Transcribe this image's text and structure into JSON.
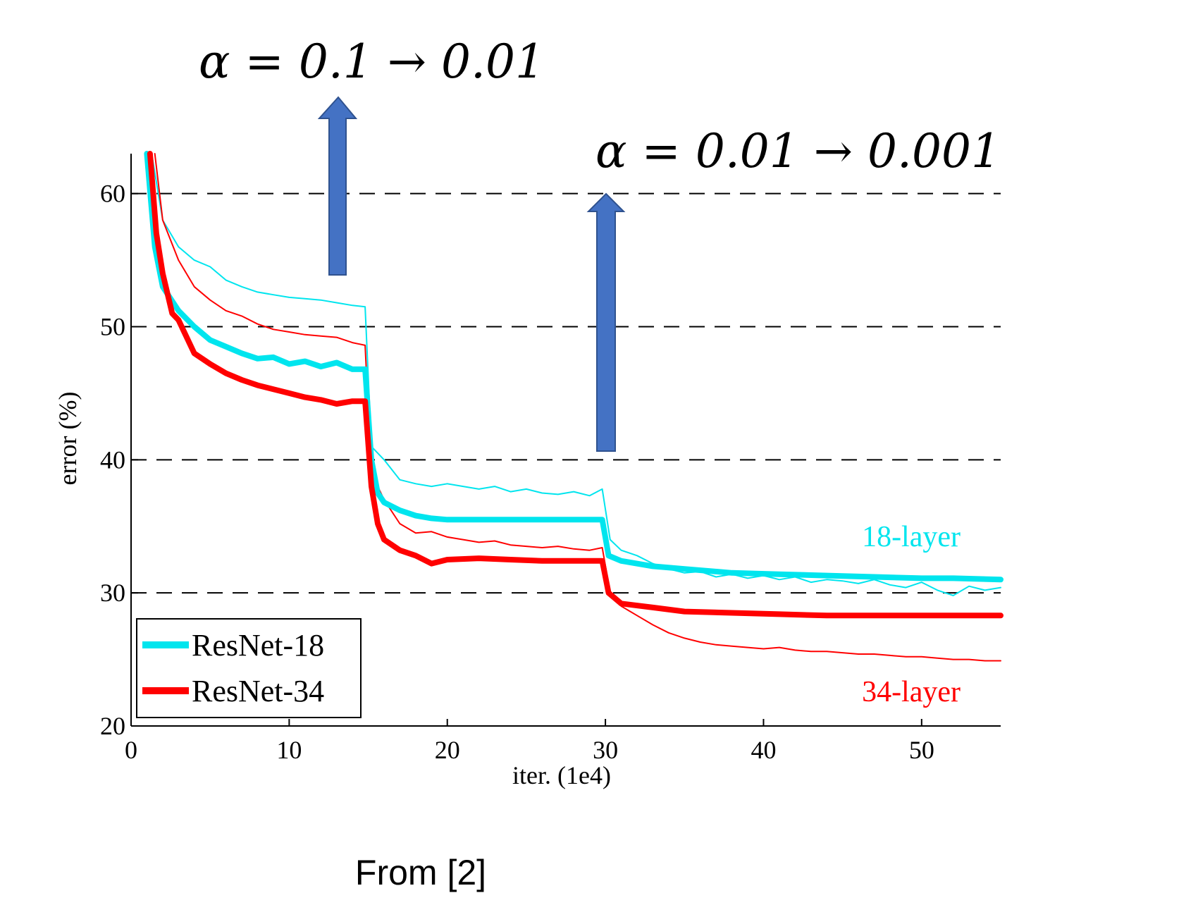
{
  "chart_data": {
    "type": "line",
    "xlabel": "iter. (1e4)",
    "ylabel": "error (%)",
    "xlim": [
      0,
      55
    ],
    "ylim": [
      20,
      63
    ],
    "xticks": [
      0,
      10,
      20,
      30,
      40,
      50
    ],
    "yticks": [
      20,
      30,
      40,
      50,
      60
    ],
    "grid": "horizontal dashed at 30, 40, 50, 60",
    "legend": {
      "placement": "bottom-left",
      "entries": [
        "ResNet-18",
        "ResNet-34"
      ]
    },
    "series": [
      {
        "name": "ResNet-18",
        "kind": "val",
        "color": "#00e5ee",
        "x": [
          1,
          1.5,
          2,
          3,
          4,
          5,
          6,
          7,
          8,
          9,
          10,
          11,
          12,
          13,
          14,
          14.8,
          15.2,
          15.6,
          16,
          17,
          18,
          19,
          20,
          22,
          24,
          26,
          28,
          29.8,
          30.2,
          31,
          33,
          35,
          38,
          41,
          44,
          47,
          50,
          52,
          55
        ],
        "y": [
          63,
          56,
          53,
          51.2,
          50,
          49,
          48.5,
          48,
          47.6,
          47.7,
          47.2,
          47.4,
          47,
          47.3,
          46.8,
          46.8,
          40,
          37.5,
          36.8,
          36.2,
          35.8,
          35.6,
          35.5,
          35.5,
          35.5,
          35.5,
          35.5,
          35.5,
          32.8,
          32.4,
          32,
          31.8,
          31.5,
          31.4,
          31.3,
          31.2,
          31.1,
          31.1,
          31
        ]
      },
      {
        "name": "ResNet-34",
        "kind": "val",
        "color": "#ff0000",
        "x": [
          1.2,
          1.6,
          2,
          2.6,
          3,
          4,
          5,
          6,
          7,
          8,
          9,
          10,
          11,
          12,
          13,
          14,
          14.8,
          15.2,
          15.6,
          16,
          17,
          18,
          19,
          20,
          22,
          24,
          26,
          28,
          29.8,
          30.2,
          31,
          33,
          35,
          38,
          41,
          44,
          47,
          50,
          52,
          55
        ],
        "y": [
          63,
          57,
          54,
          51,
          50.5,
          48,
          47.2,
          46.5,
          46,
          45.6,
          45.3,
          45,
          44.7,
          44.5,
          44.2,
          44.4,
          44.4,
          38,
          35.2,
          34,
          33.2,
          32.8,
          32.2,
          32.5,
          32.6,
          32.5,
          32.4,
          32.4,
          32.4,
          30,
          29.2,
          28.9,
          28.6,
          28.5,
          28.4,
          28.3,
          28.3,
          28.3,
          28.3,
          28.3
        ]
      },
      {
        "name": "ResNet-18",
        "kind": "train",
        "color": "#00e5ee",
        "x": [
          1.3,
          2,
          3,
          4,
          5,
          6,
          7,
          8,
          9,
          10,
          11,
          12,
          13,
          14,
          14.8,
          15.2,
          16,
          17,
          18,
          19,
          20,
          21,
          22,
          23,
          24,
          25,
          26,
          27,
          28,
          29,
          29.8,
          30.3,
          31,
          32,
          33,
          34,
          35,
          36,
          37,
          38,
          39,
          40,
          41,
          42,
          43,
          44,
          45,
          46,
          47,
          48,
          49,
          50,
          51,
          52,
          53,
          54,
          55
        ],
        "y": [
          63,
          58,
          56,
          55,
          54.5,
          53.5,
          53,
          52.6,
          52.4,
          52.2,
          52.1,
          52,
          51.8,
          51.6,
          51.5,
          41,
          40,
          38.5,
          38.2,
          38,
          38.2,
          38,
          37.8,
          38,
          37.6,
          37.8,
          37.5,
          37.4,
          37.6,
          37.3,
          37.8,
          34,
          33.2,
          32.8,
          32.2,
          31.8,
          31.5,
          31.6,
          31.2,
          31.4,
          31.1,
          31.3,
          31,
          31.2,
          30.8,
          31,
          30.9,
          30.7,
          31,
          30.6,
          30.4,
          30.8,
          30.2,
          29.8,
          30.5,
          30.2,
          30.4
        ]
      },
      {
        "name": "ResNet-34",
        "kind": "train",
        "color": "#ff0000",
        "x": [
          1.5,
          2,
          3,
          4,
          5,
          6,
          7,
          8,
          9,
          10,
          11,
          12,
          13,
          14,
          14.8,
          15.2,
          16,
          17,
          18,
          19,
          20,
          21,
          22,
          23,
          24,
          25,
          26,
          27,
          28,
          29,
          29.8,
          30.3,
          31,
          32,
          33,
          34,
          35,
          36,
          37,
          38,
          39,
          40,
          41,
          42,
          43,
          44,
          45,
          46,
          47,
          48,
          49,
          50,
          51,
          52,
          53,
          54,
          55
        ],
        "y": [
          63,
          58,
          55,
          53,
          52,
          51.2,
          50.8,
          50.2,
          49.8,
          49.6,
          49.4,
          49.3,
          49.2,
          48.8,
          48.6,
          39,
          37,
          35.2,
          34.5,
          34.6,
          34.2,
          34,
          33.8,
          33.9,
          33.6,
          33.5,
          33.4,
          33.5,
          33.3,
          33.2,
          33.4,
          30,
          29,
          28.3,
          27.6,
          27,
          26.6,
          26.3,
          26.1,
          26,
          25.9,
          25.8,
          25.9,
          25.7,
          25.6,
          25.6,
          25.5,
          25.4,
          25.4,
          25.3,
          25.2,
          25.2,
          25.1,
          25,
          25,
          24.9,
          24.9
        ]
      }
    ],
    "annotations": [
      {
        "id": "lr-drop-1",
        "text": "α = 0.1 → 0.01",
        "at_x": 13
      },
      {
        "id": "lr-drop-2",
        "text": "α = 0.01 → 0.001",
        "at_x": 30
      },
      {
        "id": "label-18",
        "text": "18-layer",
        "color": "#00e5ee"
      },
      {
        "id": "label-34",
        "text": "34-layer",
        "color": "#ff0000"
      }
    ]
  },
  "caption": "From [2]",
  "colors": {
    "cyan": "#00e5ee",
    "red": "#ff0000",
    "arrow": "#4472c4",
    "arrow_edge": "#2f528f"
  }
}
